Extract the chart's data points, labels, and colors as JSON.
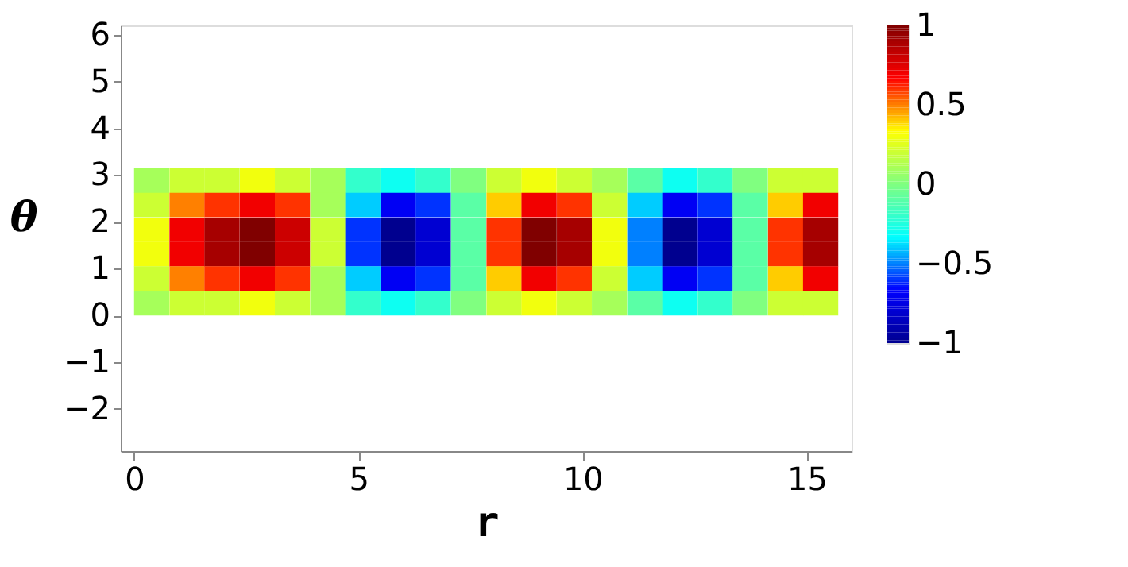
{
  "chart_data": {
    "type": "heatmap",
    "xlabel": "r",
    "ylabel": "θ",
    "x": [
      0.39,
      1.18,
      1.96,
      2.75,
      3.53,
      4.32,
      5.1,
      5.89,
      6.67,
      7.46,
      8.25,
      9.03,
      9.82,
      10.6,
      11.39,
      12.17,
      12.96,
      13.74,
      14.53,
      15.31
    ],
    "y": [
      2.88,
      2.36,
      1.83,
      1.31,
      0.79,
      0.26
    ],
    "cells": [
      [
        0.1,
        0.2,
        0.2,
        0.3,
        0.2,
        0.1,
        -0.2,
        -0.3,
        -0.2,
        0,
        0.2,
        0.3,
        0.2,
        0.1,
        -0.1,
        -0.3,
        -0.2,
        0,
        0.2,
        0.2
      ],
      [
        0.2,
        0.5,
        0.6,
        0.7,
        0.6,
        0.1,
        -0.4,
        -0.7,
        -0.6,
        -0.1,
        0.4,
        0.7,
        0.6,
        0.2,
        -0.4,
        -0.7,
        -0.6,
        -0.1,
        0.4,
        0.7
      ],
      [
        0.3,
        0.7,
        0.9,
        1.0,
        0.8,
        0.2,
        -0.6,
        -1.0,
        -0.8,
        -0.1,
        0.6,
        1.0,
        0.9,
        0.3,
        -0.5,
        -1.0,
        -0.8,
        -0.1,
        0.6,
        0.9
      ],
      [
        0.3,
        0.7,
        0.9,
        1.0,
        0.8,
        0.2,
        -0.6,
        -1.0,
        -0.8,
        -0.1,
        0.6,
        1.0,
        0.9,
        0.3,
        -0.5,
        -1.0,
        -0.8,
        -0.1,
        0.6,
        0.9
      ],
      [
        0.2,
        0.5,
        0.6,
        0.7,
        0.6,
        0.1,
        -0.4,
        -0.7,
        -0.6,
        -0.1,
        0.4,
        0.7,
        0.6,
        0.2,
        -0.4,
        -0.7,
        -0.6,
        -0.1,
        0.4,
        0.7
      ],
      [
        0.1,
        0.2,
        0.2,
        0.3,
        0.2,
        0.1,
        -0.2,
        -0.3,
        -0.2,
        0,
        0.2,
        0.3,
        0.2,
        0.1,
        -0.1,
        -0.3,
        -0.2,
        0,
        0.2,
        0.2
      ]
    ],
    "colors": [
      "#00008f",
      "#0000ff",
      "#00ffff",
      "#80ff80",
      "#ffff00",
      "#ff0000",
      "#800000"
    ],
    "clim": [
      -1,
      1
    ],
    "cticks": [
      -1,
      -0.5,
      0,
      0.5,
      1
    ],
    "xlim": [
      -0.3,
      16
    ],
    "xticks": [
      0,
      5,
      10,
      15
    ],
    "ylim": [
      -2.9,
      6.2
    ],
    "yticks": [
      -2,
      -1,
      0,
      1,
      2,
      3,
      4,
      5,
      6
    ],
    "grid": false
  }
}
